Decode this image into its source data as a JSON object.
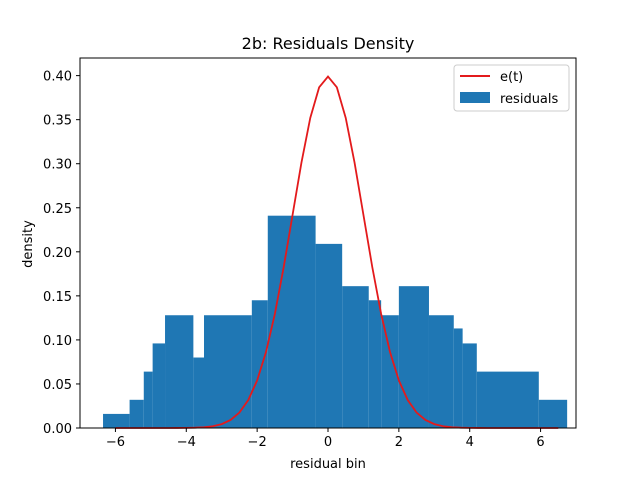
{
  "chart_data": {
    "type": "bar",
    "title": "2b: Residuals Density",
    "xlabel": "residual bin",
    "ylabel": "density",
    "xlim": [
      -7.0,
      7.0
    ],
    "ylim": [
      0,
      0.42
    ],
    "x_ticks": [
      -6,
      -4,
      -2,
      0,
      2,
      4,
      6
    ],
    "x_tick_labels": [
      "−6",
      "−4",
      "−2",
      "0",
      "2",
      "4",
      "6"
    ],
    "y_ticks": [
      0.0,
      0.05,
      0.1,
      0.15,
      0.2,
      0.25,
      0.3,
      0.35,
      0.4
    ],
    "y_tick_labels": [
      "0.00",
      "0.05",
      "0.10",
      "0.15",
      "0.20",
      "0.25",
      "0.30",
      "0.35",
      "0.40"
    ],
    "grid": false,
    "legend": {
      "position": "top-right",
      "entries": [
        "e(t)",
        "residuals"
      ]
    },
    "colors": {
      "bars": "#1f77b4",
      "curve": "#e31a1c"
    },
    "series": [
      {
        "name": "residuals",
        "kind": "histogram",
        "bins": [
          {
            "x0": -6.35,
            "x1": -5.6,
            "y": 0.016
          },
          {
            "x0": -5.6,
            "x1": -5.2,
            "y": 0.032
          },
          {
            "x0": -5.2,
            "x1": -4.95,
            "y": 0.064
          },
          {
            "x0": -4.95,
            "x1": -4.6,
            "y": 0.096
          },
          {
            "x0": -4.6,
            "x1": -3.8,
            "y": 0.128
          },
          {
            "x0": -3.8,
            "x1": -3.5,
            "y": 0.08
          },
          {
            "x0": -3.5,
            "x1": -2.15,
            "y": 0.128
          },
          {
            "x0": -2.15,
            "x1": -1.7,
            "y": 0.145
          },
          {
            "x0": -1.7,
            "x1": -0.35,
            "y": 0.241
          },
          {
            "x0": -0.35,
            "x1": 0.4,
            "y": 0.209
          },
          {
            "x0": 0.4,
            "x1": 1.15,
            "y": 0.161
          },
          {
            "x0": 1.15,
            "x1": 1.5,
            "y": 0.145
          },
          {
            "x0": 1.5,
            "x1": 2.0,
            "y": 0.128
          },
          {
            "x0": 2.0,
            "x1": 2.85,
            "y": 0.161
          },
          {
            "x0": 2.85,
            "x1": 3.55,
            "y": 0.128
          },
          {
            "x0": 3.55,
            "x1": 3.8,
            "y": 0.113
          },
          {
            "x0": 3.8,
            "x1": 4.2,
            "y": 0.096
          },
          {
            "x0": 4.2,
            "x1": 5.95,
            "y": 0.064
          },
          {
            "x0": 5.95,
            "x1": 6.75,
            "y": 0.032
          }
        ]
      },
      {
        "name": "e(t)",
        "kind": "line",
        "x": [
          -6.0,
          -5.75,
          -5.5,
          -5.25,
          -5.0,
          -4.75,
          -4.5,
          -4.25,
          -4.0,
          -3.75,
          -3.5,
          -3.25,
          -3.0,
          -2.75,
          -2.5,
          -2.25,
          -2.0,
          -1.75,
          -1.5,
          -1.25,
          -1.0,
          -0.75,
          -0.5,
          -0.25,
          0.0,
          0.25,
          0.5,
          0.75,
          1.0,
          1.25,
          1.5,
          1.75,
          2.0,
          2.25,
          2.5,
          2.75,
          3.0,
          3.25,
          3.5,
          3.75,
          4.0,
          4.25,
          4.5,
          4.75,
          5.0,
          5.25,
          5.5,
          5.75,
          6.0,
          6.25,
          6.5
        ],
        "y": [
          0.0,
          0.0,
          0.0,
          0.0,
          0.0,
          0.0,
          2e-05,
          5e-05,
          0.00013,
          0.00035,
          0.00087,
          0.00203,
          0.00443,
          0.00909,
          0.01753,
          0.03174,
          0.05399,
          0.08628,
          0.12952,
          0.18265,
          0.24197,
          0.30114,
          0.35207,
          0.38667,
          0.39894,
          0.38667,
          0.35207,
          0.30114,
          0.24197,
          0.18265,
          0.12952,
          0.08628,
          0.05399,
          0.03174,
          0.01753,
          0.00909,
          0.00443,
          0.00203,
          0.00087,
          0.00035,
          0.00013,
          5e-05,
          2e-05,
          0.0,
          0.0,
          0.0,
          0.0,
          0.0,
          0.0,
          0.0,
          0.0
        ]
      }
    ]
  }
}
